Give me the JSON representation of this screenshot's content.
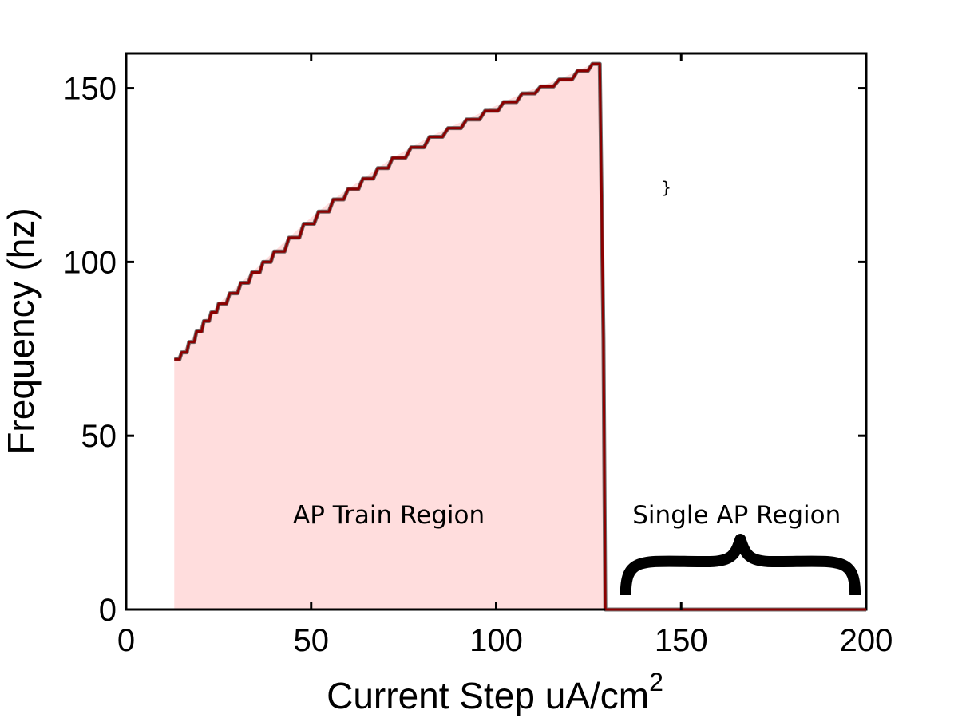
{
  "chart_data": {
    "type": "area",
    "title": "",
    "xlabel": "Current Step uA/cm",
    "xlabel_superscript": "2",
    "ylabel": "Frequency (hz)",
    "xlim": [
      0,
      200
    ],
    "ylim": [
      0,
      160
    ],
    "x_ticks": [
      "0",
      "50",
      "100",
      "150",
      "200"
    ],
    "y_ticks": [
      "0",
      "50",
      "100",
      "150"
    ],
    "grid": false,
    "legend": "none",
    "series": [
      {
        "color": "#8b0000",
        "fill": "#ffdddd",
        "x": [
          13,
          15,
          17,
          19,
          21,
          23,
          25,
          28,
          31,
          34,
          37,
          40,
          44,
          48,
          52,
          56,
          60,
          64,
          68,
          72,
          77,
          82,
          87,
          92,
          97,
          102,
          107,
          112,
          117,
          122,
          126,
          128,
          129,
          129.5,
          200
        ],
        "y": [
          72,
          74,
          77,
          80,
          83,
          85.5,
          88,
          91,
          94,
          97,
          100,
          103,
          107,
          111,
          114.5,
          118,
          121,
          124,
          127,
          130,
          133,
          136,
          138.5,
          141,
          143.5,
          146,
          148.5,
          150.5,
          152.5,
          155,
          157,
          157,
          78,
          0,
          0
        ]
      }
    ],
    "annotations": [
      {
        "text": "AP Train Region",
        "x": 71,
        "y": 28
      },
      {
        "text": "Single AP Region",
        "x": 165,
        "y": 28
      },
      {
        "text": "}",
        "x": 146,
        "y": 123
      }
    ],
    "brace_symbol": "{",
    "brace_span": [
      135,
      197
    ]
  }
}
